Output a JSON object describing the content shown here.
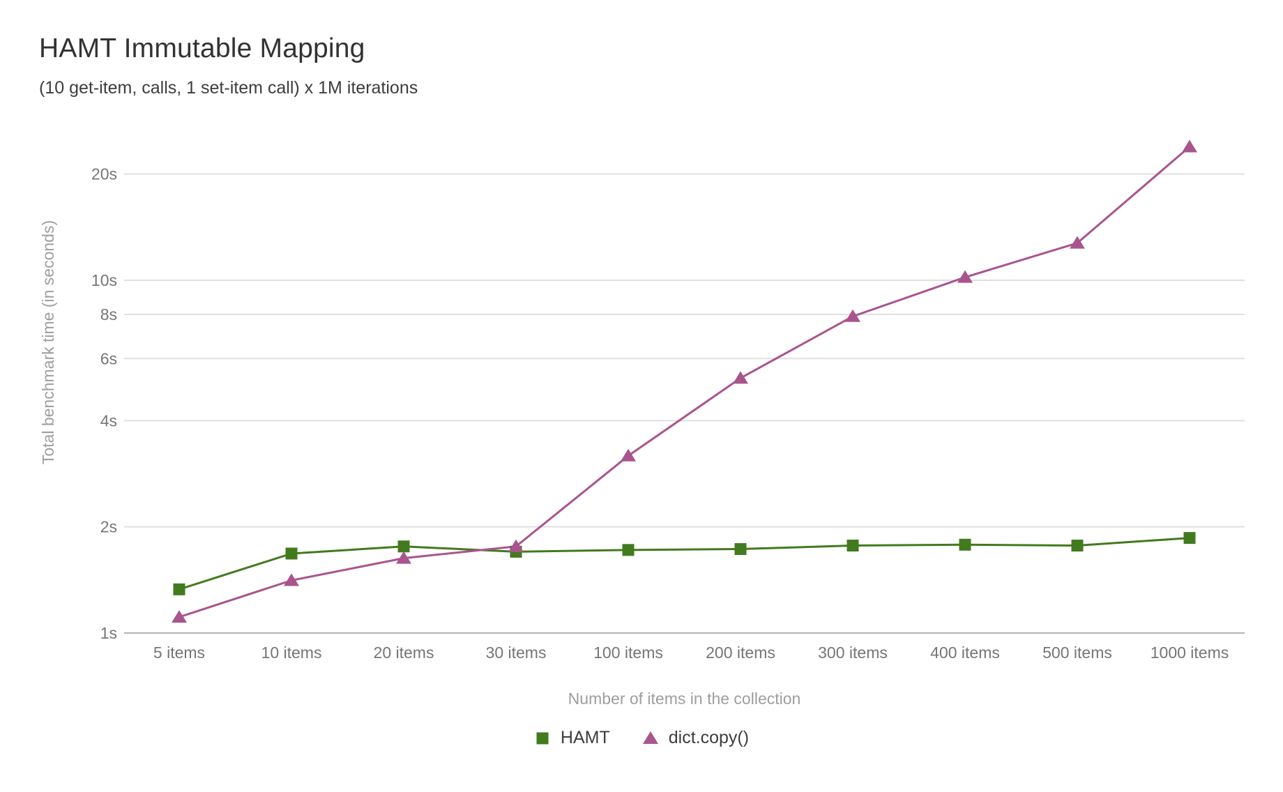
{
  "chart_data": {
    "type": "line",
    "title": "HAMT Immutable Mapping",
    "subtitle": "(10 get-item, calls, 1 set-item call) x 1M iterations",
    "xlabel": "Number of items in the collection",
    "ylabel": "Total benchmark time (in seconds)",
    "x_scale": "category",
    "y_scale": "log",
    "ylim": [
      1,
      26
    ],
    "grid": true,
    "legend_position": "bottom",
    "categories": [
      "5 items",
      "10 items",
      "20 items",
      "30 items",
      "100 items",
      "200 items",
      "300 items",
      "400 items",
      "500 items",
      "1000 items"
    ],
    "y_ticks": [
      {
        "value": 1,
        "label": "1s"
      },
      {
        "value": 2,
        "label": "2s"
      },
      {
        "value": 4,
        "label": "4s"
      },
      {
        "value": 6,
        "label": "6s"
      },
      {
        "value": 8,
        "label": "8s"
      },
      {
        "value": 10,
        "label": "10s"
      },
      {
        "value": 20,
        "label": "20s"
      }
    ],
    "series": [
      {
        "name": "HAMT",
        "marker": "square",
        "color": "#427a1e",
        "values": [
          1.33,
          1.68,
          1.76,
          1.7,
          1.72,
          1.73,
          1.77,
          1.78,
          1.77,
          1.86
        ]
      },
      {
        "name": "dict.copy()",
        "marker": "triangle",
        "color": "#a9548e",
        "values": [
          1.11,
          1.41,
          1.63,
          1.76,
          3.18,
          5.28,
          7.9,
          10.2,
          12.75,
          23.9
        ]
      }
    ]
  },
  "colors": {
    "background": "#ffffff",
    "title_text": "#323232",
    "subtitle_text": "#3d3d3d",
    "axis_title_text": "#9e9e9e",
    "tick_text": "#757575",
    "gridline": "#e0e0e0",
    "baseline": "#b3b3b3",
    "legend_text": "#3d3d3d",
    "hamt_green": "#427a1e",
    "dict_copy_plum": "#a9548e"
  }
}
